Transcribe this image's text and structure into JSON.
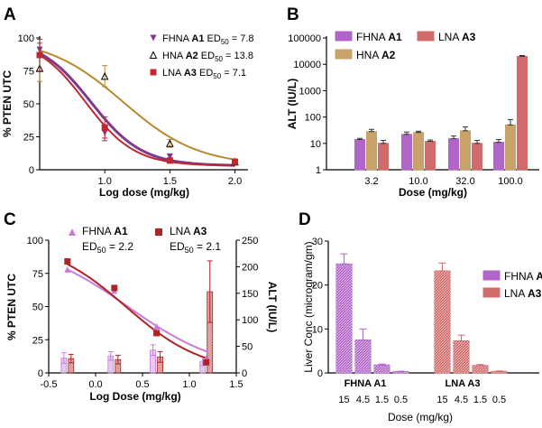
{
  "chart_data": [
    {
      "panel": "A",
      "type": "scatter",
      "xlabel": "Log dose (mg/kg)",
      "ylabel": "% PTEN UTC",
      "xlim": [
        0.5,
        2.1
      ],
      "ylim": [
        0,
        100
      ],
      "x_ticks": [
        "1.0",
        "1.5",
        "2.0"
      ],
      "y_ticks": [
        "0",
        "25",
        "50",
        "75",
        "100"
      ],
      "legend": [
        {
          "prefix": "FHNA ",
          "bold": "A1",
          "ed": " ED",
          "sub": "50",
          "val": " = 7.8"
        },
        {
          "prefix": "HNA ",
          "bold": "A2",
          "ed": " ED",
          "sub": "50",
          "val": " = 13.8"
        },
        {
          "prefix": "LNA ",
          "bold": "A3",
          "ed": " ED",
          "sub": "50",
          "val": " = 7.1"
        }
      ],
      "series": [
        {
          "name": "FHNA A1",
          "color": "#7e3a8e",
          "marker": "triangle-down",
          "ed50": 7.8,
          "points": [
            {
              "x": 0.5,
              "y": 91,
              "err": 5
            },
            {
              "x": 1.0,
              "y": 28,
              "err": 6
            },
            {
              "x": 1.5,
              "y": 10,
              "err": 2
            },
            {
              "x": 2.0,
              "y": 6,
              "err": 1
            }
          ]
        },
        {
          "name": "HNA A2",
          "color": "#b8892c",
          "marker": "triangle-open",
          "ed50": 13.8,
          "points": [
            {
              "x": 0.5,
              "y": 77,
              "err": 10
            },
            {
              "x": 1.0,
              "y": 71,
              "err": 8
            },
            {
              "x": 1.5,
              "y": 20,
              "err": 3
            },
            {
              "x": 2.0,
              "y": 6,
              "err": 1
            }
          ]
        },
        {
          "name": "LNA A3",
          "color": "#c1272d",
          "marker": "square",
          "ed50": 7.1,
          "points": [
            {
              "x": 0.5,
              "y": 87,
              "err": 12
            },
            {
              "x": 1.0,
              "y": 32,
              "err": 8
            },
            {
              "x": 1.5,
              "y": 7,
              "err": 2
            },
            {
              "x": 2.0,
              "y": 6,
              "err": 1
            }
          ]
        }
      ]
    },
    {
      "panel": "B",
      "type": "bar",
      "yscale": "log",
      "xlabel": "Dose (mg/kg)",
      "ylabel": "ALT (IU/L)",
      "categories": [
        "3.2",
        "10.0",
        "32.0",
        "100.0"
      ],
      "y_ticks": [
        "1",
        "10",
        "100",
        "1000",
        "10000",
        "100000"
      ],
      "legend": [
        {
          "prefix": "FHNA ",
          "bold": "A1"
        },
        {
          "prefix": "HNA ",
          "bold": "A2"
        },
        {
          "prefix": "LNA ",
          "bold": "A3"
        }
      ],
      "series": [
        {
          "name": "FHNA A1",
          "color": "#b066c8",
          "values": [
            14,
            22,
            15,
            11
          ],
          "err": [
            1.5,
            5,
            4,
            3
          ]
        },
        {
          "name": "HNA A2",
          "color": "#c9a26a",
          "values": [
            28,
            26,
            30,
            50
          ],
          "err": [
            6,
            3,
            12,
            30
          ]
        },
        {
          "name": "LNA A3",
          "color": "#d16a6a",
          "values": [
            10,
            12,
            10,
            20000
          ],
          "err": [
            3,
            1.5,
            3,
            1500
          ]
        }
      ]
    },
    {
      "panel": "C",
      "type": "scatter+bar",
      "xlabel": "Log Dose (mg/kg)",
      "ylabel_left": "% PTEN UTC",
      "ylabel_right": "ALT (IU/L)",
      "xlim": [
        -0.5,
        1.5
      ],
      "ylim_left": [
        0,
        100
      ],
      "ylim_right": [
        0,
        250
      ],
      "x_ticks": [
        "-0.5",
        "0.0",
        "0.5",
        "1.0",
        "1.5"
      ],
      "y_ticks_left": [
        "0",
        "25",
        "50",
        "75",
        "100"
      ],
      "y_ticks_right": [
        "0",
        "50",
        "100",
        "150",
        "200",
        "250"
      ],
      "legend": [
        {
          "prefix": "FHNA ",
          "bold": "A1",
          "ed": "ED",
          "sub": "50",
          "val": " = 2.2"
        },
        {
          "prefix": "LNA ",
          "bold": "A3",
          "ed": "ED",
          "sub": "50",
          "val": " = 2.1"
        }
      ],
      "series": [
        {
          "name": "FHNA A1",
          "color": "#c77ddb",
          "ed50": 2.2,
          "pten": [
            {
              "x": -0.3,
              "y": 78
            },
            {
              "x": 0.2,
              "y": 62
            },
            {
              "x": 0.65,
              "y": 35
            },
            {
              "x": 1.18,
              "y": 11
            }
          ],
          "alt": [
            {
              "x": -0.3,
              "y": 28,
              "err": 10
            },
            {
              "x": 0.2,
              "y": 32,
              "err": 8
            },
            {
              "x": 0.65,
              "y": 43,
              "err": 10
            },
            {
              "x": 1.18,
              "y": 22,
              "err": 8
            }
          ]
        },
        {
          "name": "LNA A3",
          "color": "#b22222",
          "ed50": 2.1,
          "pten": [
            {
              "x": -0.3,
              "y": 84
            },
            {
              "x": 0.2,
              "y": 64
            },
            {
              "x": 0.65,
              "y": 30
            },
            {
              "x": 1.18,
              "y": 8
            }
          ],
          "alt": [
            {
              "x": -0.3,
              "y": 27,
              "err": 8
            },
            {
              "x": 0.2,
              "y": 25,
              "err": 8
            },
            {
              "x": 0.65,
              "y": 30,
              "err": 10
            },
            {
              "x": 1.18,
              "y": 153,
              "err": 58
            }
          ]
        }
      ]
    },
    {
      "panel": "D",
      "type": "bar",
      "xlabel": "Dose (mg/kg)",
      "ylabel": "Liver Conc (microgram/gm)",
      "ylim": [
        0,
        30
      ],
      "y_ticks": [
        "0",
        "10",
        "20",
        "30"
      ],
      "groups": [
        "FHNA A1",
        "LNA A3"
      ],
      "dose_labels": [
        "15",
        "4.5",
        "1.5",
        "0.5"
      ],
      "legend": [
        {
          "prefix": "FHNA ",
          "bold": "A1"
        },
        {
          "prefix": "LNA ",
          "bold": "A3"
        }
      ],
      "series": [
        {
          "name": "FHNA A1",
          "color": "#b066c8",
          "values": [
            24.8,
            7.5,
            1.8,
            0.3
          ],
          "err": [
            2.3,
            2.5,
            0.2,
            0.1
          ]
        },
        {
          "name": "LNA A3",
          "color": "#d16a6a",
          "values": [
            23.2,
            7.3,
            1.7,
            0.35
          ],
          "err": [
            1.8,
            1.3,
            0.2,
            0.1
          ]
        }
      ]
    }
  ],
  "panels": {
    "A": "A",
    "B": "B",
    "C": "C",
    "D": "D"
  }
}
